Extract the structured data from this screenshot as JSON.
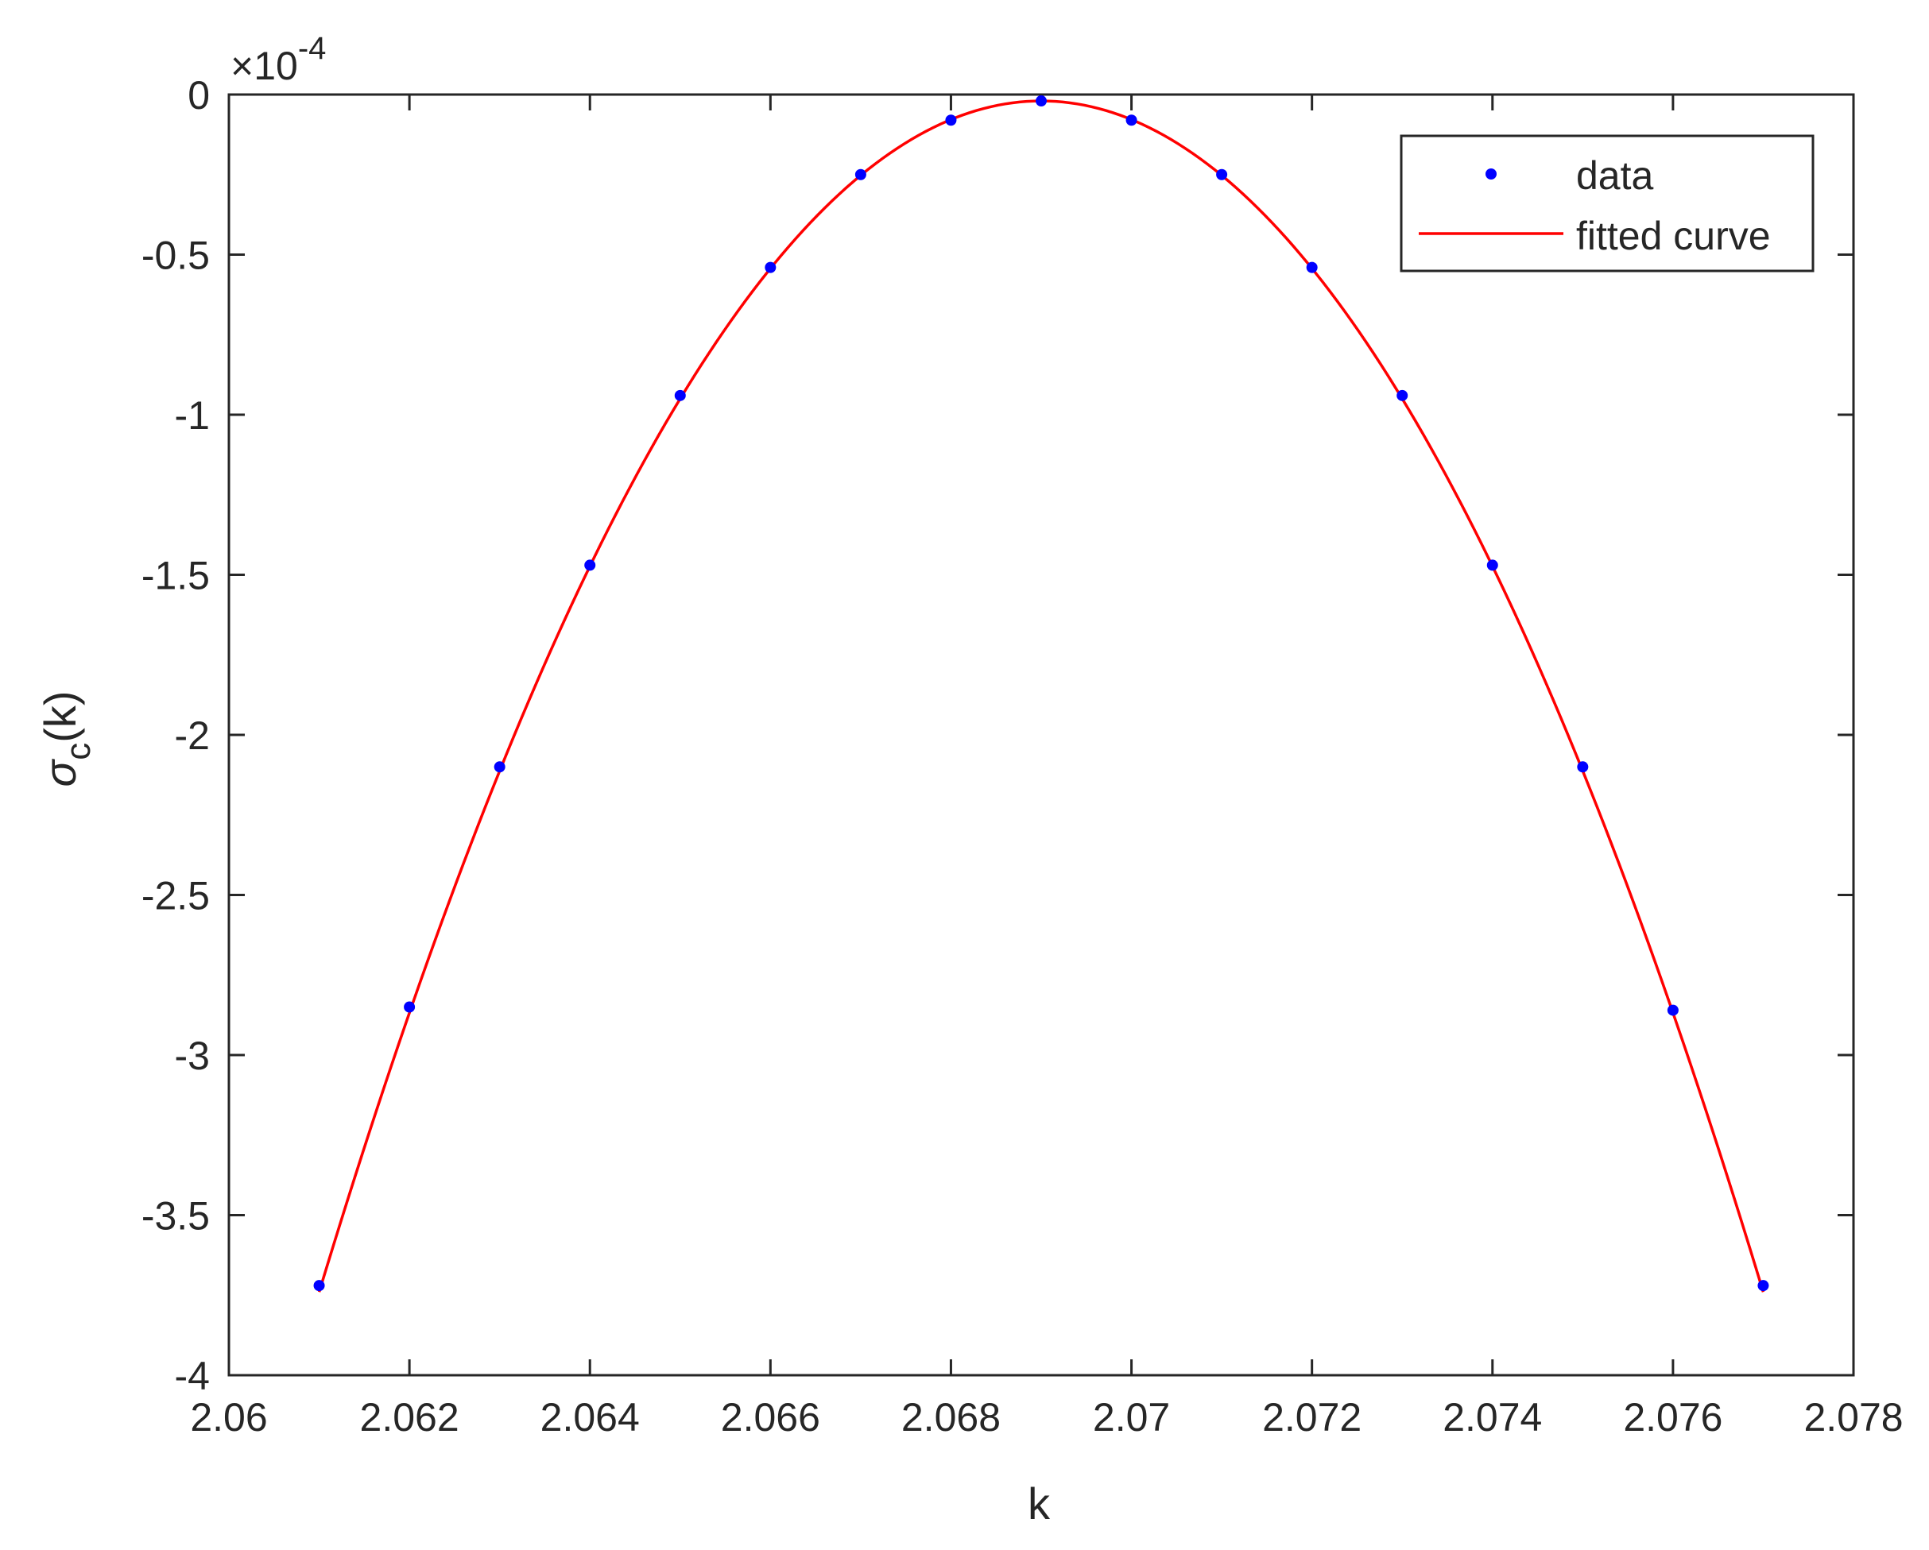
{
  "chart_data": {
    "type": "scatter",
    "xlabel": "k",
    "ylabel": {
      "main": "σ",
      "sub": "c",
      "rest": "(k)"
    },
    "y_exponent": {
      "base": "×10",
      "power": "-4"
    },
    "xlim": [
      2.06,
      2.078
    ],
    "ylim": [
      -4,
      0
    ],
    "xticks": [
      2.06,
      2.062,
      2.064,
      2.066,
      2.068,
      2.07,
      2.072,
      2.074,
      2.076,
      2.078
    ],
    "xtick_labels": [
      "2.06",
      "2.062",
      "2.064",
      "2.066",
      "2.068",
      "2.07",
      "2.072",
      "2.074",
      "2.076",
      "2.078"
    ],
    "yticks": [
      0,
      -0.5,
      -1,
      -1.5,
      -2,
      -2.5,
      -3,
      -3.5,
      -4
    ],
    "ytick_labels": [
      "0",
      "-0.5",
      "-1",
      "-1.5",
      "-2",
      "-2.5",
      "-3",
      "-3.5",
      "-4"
    ],
    "grid": false,
    "legend_position": "top-right",
    "series": [
      {
        "name": "data",
        "kind": "markers",
        "color": "#0000ff",
        "x": [
          2.061,
          2.062,
          2.063,
          2.064,
          2.065,
          2.066,
          2.067,
          2.068,
          2.069,
          2.07,
          2.071,
          2.072,
          2.073,
          2.074,
          2.075,
          2.076,
          2.077
        ],
        "y": [
          -3.72,
          -2.85,
          -2.1,
          -1.47,
          -0.94,
          -0.54,
          -0.25,
          -0.08,
          -0.02,
          -0.08,
          -0.25,
          -0.54,
          -0.94,
          -1.47,
          -2.1,
          -2.86,
          -3.72
        ]
      },
      {
        "name": "fitted curve",
        "kind": "line",
        "color": "#ff0000",
        "fit": {
          "model": "quadratic",
          "vertex_x": 2.069,
          "vertex_y": -0.02,
          "a": -58125
        }
      }
    ]
  }
}
